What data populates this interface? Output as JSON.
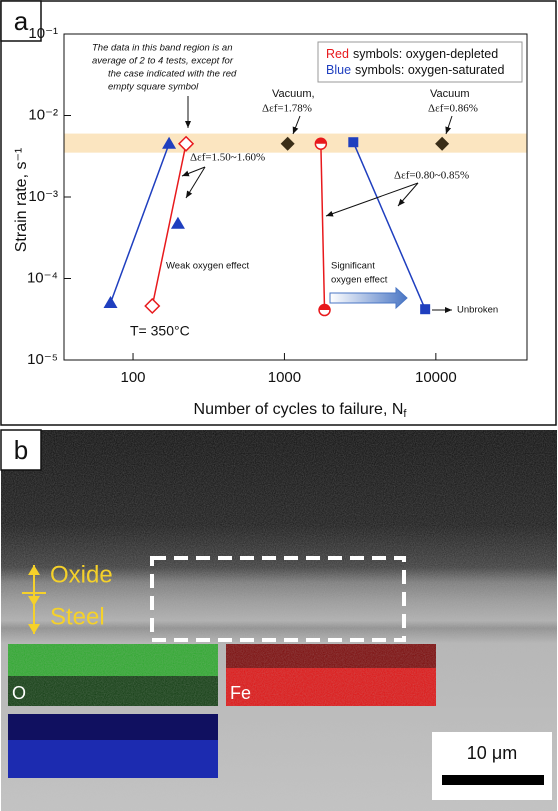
{
  "chart_data": {
    "type": "scatter",
    "panel_label": "a",
    "xlabel": "Number of cycles to failure, N",
    "xlabel_sub": "f",
    "ylabel": "Strain rate, s⁻¹",
    "xscale": "log",
    "yscale": "log",
    "xlim": [
      35,
      40000
    ],
    "ylim": [
      1e-05,
      0.1
    ],
    "xticks": [
      100,
      1000,
      10000
    ],
    "yticks": [
      {
        "value": 0.1,
        "label": "10⁻¹"
      },
      {
        "value": 0.01,
        "label": "10⁻²"
      },
      {
        "value": 0.001,
        "label": "10⁻³"
      },
      {
        "value": 0.0001,
        "label": "10⁻⁴"
      },
      {
        "value": 1e-05,
        "label": "10⁻⁵"
      }
    ],
    "band": [
      0.0035,
      0.006
    ],
    "band_color": "#fbe5c0",
    "legend": [
      [
        "Red",
        "symbols: oxygen-depleted",
        "#e8191c"
      ],
      [
        "Blue",
        "symbols: oxygen-saturated",
        "#1f3fbf"
      ]
    ],
    "series": [
      {
        "marker": "triangle",
        "color": "#1f3fbf",
        "line": true,
        "x": [
          173,
          71
        ],
        "values": [
          0.0045,
          5e-05
        ]
      },
      {
        "marker": "triangle",
        "color": "#1f3fbf",
        "line": false,
        "x": [
          198
        ],
        "values": [
          0.00047
        ]
      },
      {
        "marker": "diamond-open",
        "color": "#e8191c",
        "line": true,
        "x": [
          224,
          134
        ],
        "values": [
          0.0045,
          4.6e-05
        ]
      },
      {
        "marker": "diamond",
        "color": "#3a2e18",
        "line": false,
        "x": [
          1050,
          11000
        ],
        "values": [
          0.0045,
          0.0045
        ]
      },
      {
        "marker": "circle-half",
        "color": "#e8191c",
        "line": true,
        "x": [
          1740,
          1840
        ],
        "values": [
          0.0045,
          4.1e-05
        ]
      },
      {
        "marker": "square",
        "color": "#1f3fbf",
        "line": true,
        "x": [
          2850,
          8500
        ],
        "values": [
          0.0047,
          4.2e-05
        ]
      }
    ],
    "annotations": {
      "note": [
        "The data in this band region is an",
        "average of 2 to 4 tests, except for",
        "the case indicated with the red",
        "empty square symbol"
      ],
      "vacuum1": [
        "Vacuum,",
        "Δεf=1.78%"
      ],
      "vacuum2": [
        "Vacuum",
        "Δεf=0.86%"
      ],
      "strain1": "Δεf=1.50~1.60%",
      "strain2": "Δεf=0.80~0.85%",
      "weak": "Weak oxygen effect",
      "significant": [
        "Significant",
        "oxygen effect"
      ],
      "unbroken": "Unbroken",
      "temperature": "T= 350°C"
    }
  },
  "panel_b": {
    "label": "b",
    "layers": [
      "Oxide",
      "Steel"
    ],
    "maps": [
      "O",
      "Fe"
    ],
    "scale_bar": "10 μm"
  }
}
